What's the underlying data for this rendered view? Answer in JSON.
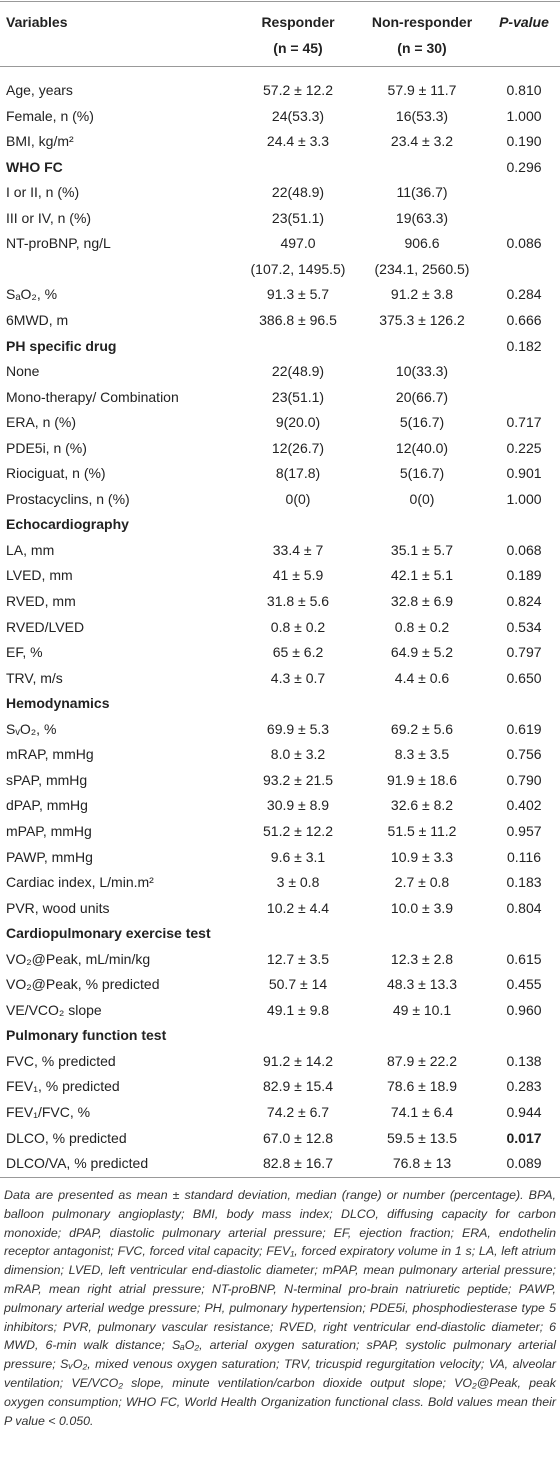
{
  "table": {
    "header": {
      "variables": "Variables",
      "responder": "Responder",
      "responder_n": "(n = 45)",
      "non_responder": "Non-responder",
      "non_responder_n": "(n = 30)",
      "p": "P-value"
    },
    "rows": [
      {
        "label": "Age, years",
        "responder": "57.2 ± 12.2",
        "non_responder": "57.9 ± 11.7",
        "p": "0.810"
      },
      {
        "label": "Female, n (%)",
        "responder": "24(53.3)",
        "non_responder": "16(53.3)",
        "p": "1.000"
      },
      {
        "label": "BMI, kg/m²",
        "responder": "24.4 ± 3.3",
        "non_responder": "23.4 ± 3.2",
        "p": "0.190"
      },
      {
        "label": "WHO FC",
        "section": true,
        "p": "0.296"
      },
      {
        "label": "I or II, n (%)",
        "responder": "22(48.9)",
        "non_responder": "11(36.7)"
      },
      {
        "label": "III or IV, n (%)",
        "responder": "23(51.1)",
        "non_responder": "19(63.3)"
      },
      {
        "label": "NT-proBNP, ng/L",
        "responder": "497.0",
        "non_responder": "906.6",
        "p": "0.086"
      },
      {
        "responder": "(107.2, 1495.5)",
        "non_responder": "(234.1, 2560.5)"
      },
      {
        "label": "SₐO₂, %",
        "responder": "91.3 ± 5.7",
        "non_responder": "91.2 ± 3.8",
        "p": "0.284"
      },
      {
        "label": "6MWD, m",
        "responder": "386.8 ± 96.5",
        "non_responder": "375.3 ± 126.2",
        "p": "0.666"
      },
      {
        "label": "PH specific drug",
        "section": true,
        "p": "0.182"
      },
      {
        "label": "None",
        "responder": "22(48.9)",
        "non_responder": "10(33.3)"
      },
      {
        "label": "Mono-therapy/ Combination",
        "responder": "23(51.1)",
        "non_responder": "20(66.7)"
      },
      {
        "label": "ERA, n (%)",
        "responder": "9(20.0)",
        "non_responder": "5(16.7)",
        "p": "0.717"
      },
      {
        "label": "PDE5i, n (%)",
        "responder": "12(26.7)",
        "non_responder": "12(40.0)",
        "p": "0.225"
      },
      {
        "label": "Riociguat, n (%)",
        "responder": "8(17.8)",
        "non_responder": "5(16.7)",
        "p": "0.901"
      },
      {
        "label": "Prostacyclins, n (%)",
        "responder": "0(0)",
        "non_responder": "0(0)",
        "p": "1.000"
      },
      {
        "label": "Echocardiography",
        "section": true
      },
      {
        "label": "LA, mm",
        "responder": "33.4 ± 7",
        "non_responder": "35.1 ± 5.7",
        "p": "0.068"
      },
      {
        "label": "LVED, mm",
        "responder": "41 ± 5.9",
        "non_responder": "42.1 ± 5.1",
        "p": "0.189"
      },
      {
        "label": "RVED, mm",
        "responder": "31.8 ± 5.6",
        "non_responder": "32.8 ± 6.9",
        "p": "0.824"
      },
      {
        "label": "RVED/LVED",
        "responder": "0.8 ± 0.2",
        "non_responder": "0.8 ± 0.2",
        "p": "0.534"
      },
      {
        "label": "EF, %",
        "responder": "65 ± 6.2",
        "non_responder": "64.9 ± 5.2",
        "p": "0.797"
      },
      {
        "label": "TRV, m/s",
        "responder": "4.3 ± 0.7",
        "non_responder": "4.4 ± 0.6",
        "p": "0.650"
      },
      {
        "label": "Hemodynamics",
        "section": true
      },
      {
        "label": "SᵥO₂, %",
        "responder": "69.9 ± 5.3",
        "non_responder": "69.2 ± 5.6",
        "p": "0.619"
      },
      {
        "label": "mRAP, mmHg",
        "responder": "8.0 ± 3.2",
        "non_responder": "8.3 ± 3.5",
        "p": "0.756"
      },
      {
        "label": "sPAP, mmHg",
        "responder": "93.2 ± 21.5",
        "non_responder": "91.9 ± 18.6",
        "p": "0.790"
      },
      {
        "label": "dPAP, mmHg",
        "responder": "30.9 ± 8.9",
        "non_responder": "32.6 ± 8.2",
        "p": "0.402"
      },
      {
        "label": "mPAP, mmHg",
        "responder": "51.2 ± 12.2",
        "non_responder": "51.5 ± 11.2",
        "p": "0.957"
      },
      {
        "label": "PAWP, mmHg",
        "responder": "9.6 ± 3.1",
        "non_responder": "10.9 ± 3.3",
        "p": "0.116"
      },
      {
        "label": "Cardiac index, L/min.m²",
        "responder": "3 ± 0.8",
        "non_responder": "2.7 ± 0.8",
        "p": "0.183"
      },
      {
        "label": "PVR, wood units",
        "responder": "10.2 ± 4.4",
        "non_responder": "10.0 ± 3.9",
        "p": "0.804"
      },
      {
        "label": "Cardiopulmonary exercise test",
        "section": true
      },
      {
        "label": "VO₂@Peak, mL/min/kg",
        "responder": "12.7 ± 3.5",
        "non_responder": "12.3 ± 2.8",
        "p": "0.615"
      },
      {
        "label": "VO₂@Peak, % predicted",
        "responder": "50.7 ± 14",
        "non_responder": "48.3 ± 13.3",
        "p": "0.455"
      },
      {
        "label": "VE/VCO₂ slope",
        "responder": "49.1 ± 9.8",
        "non_responder": "49 ± 10.1",
        "p": "0.960"
      },
      {
        "label": "Pulmonary function test",
        "section": true
      },
      {
        "label": "FVC, % predicted",
        "responder": "91.2 ± 14.2",
        "non_responder": "87.9 ± 22.2",
        "p": "0.138"
      },
      {
        "label": "FEV₁, % predicted",
        "responder": "82.9 ± 15.4",
        "non_responder": "78.6 ± 18.9",
        "p": "0.283"
      },
      {
        "label": "FEV₁/FVC, %",
        "responder": "74.2 ± 6.7",
        "non_responder": "74.1 ± 6.4",
        "p": "0.944"
      },
      {
        "label": "DLCO, % predicted",
        "responder": "67.0 ± 12.8",
        "non_responder": "59.5 ± 13.5",
        "p": "0.017",
        "p_bold": true
      },
      {
        "label": "DLCO/VA, % predicted",
        "responder": "82.8 ± 16.7",
        "non_responder": "76.8 ± 13",
        "p": "0.089"
      }
    ],
    "footnote": "Data are presented as mean ± standard deviation, median (range) or number (percentage). BPA, balloon pulmonary angioplasty; BMI, body mass index; DLCO, diffusing capacity for carbon monoxide; dPAP, diastolic pulmonary arterial pressure; EF, ejection fraction; ERA, endothelin receptor antagonist; FVC, forced vital capacity; FEV₁, forced expiratory volume in 1 s; LA, left atrium dimension; LVED, left ventricular end-diastolic diameter; mPAP, mean pulmonary arterial pressure; mRAP, mean right atrial pressure; NT-proBNP, N-terminal pro-brain natriuretic peptide; PAWP, pulmonary arterial wedge pressure; PH, pulmonary hypertension; PDE5i, phosphodiesterase type 5 inhibitors; PVR, pulmonary vascular resistance; RVED, right ventricular end-diastolic diameter; 6 MWD, 6-min walk distance; SₐO₂, arterial oxygen saturation; sPAP, systolic pulmonary arterial pressure; SᵥO₂, mixed venous oxygen saturation; TRV, tricuspid regurgitation velocity; VA, alveolar ventilation; VE/VCO₂ slope, minute ventilation/carbon dioxide output slope; VO₂@Peak, peak oxygen consumption; WHO FC, World Health Organization functional class. Bold values mean their P value < 0.050."
  }
}
